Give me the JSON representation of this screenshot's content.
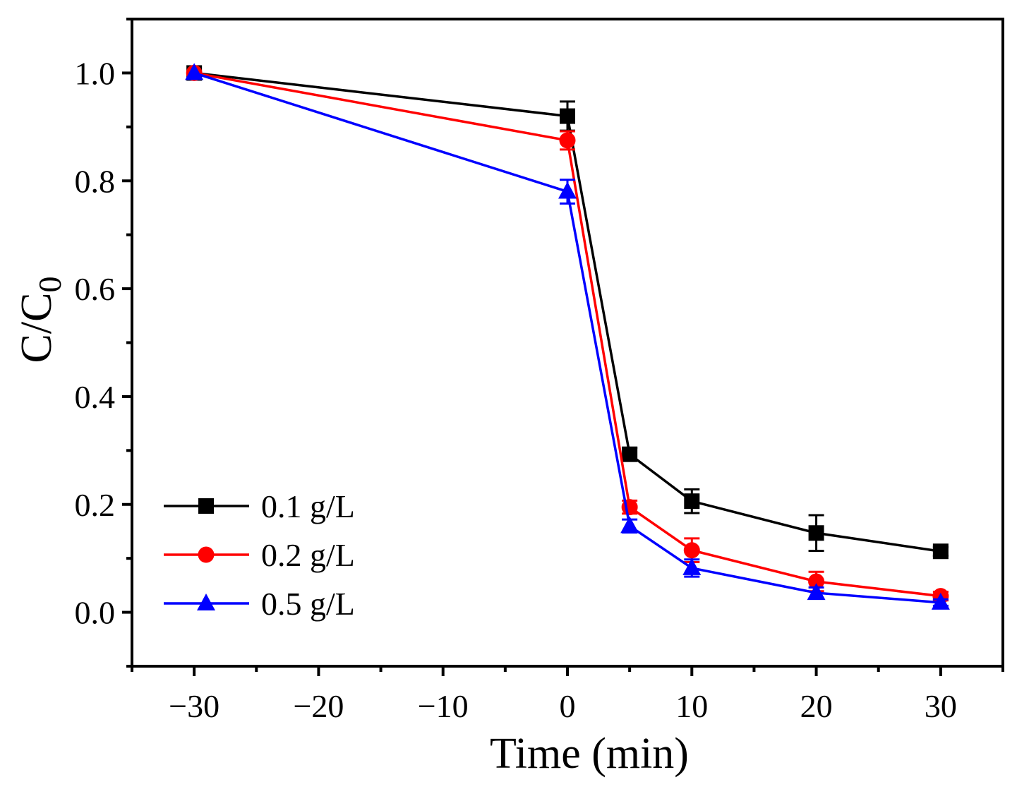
{
  "chart_data": {
    "type": "line",
    "xlabel": "Time (min)",
    "ylabel": "C/C",
    "ylabel_sub": "0",
    "xlim": [
      -35,
      35
    ],
    "ylim": [
      -0.1,
      1.1
    ],
    "xticks": [
      -30,
      -20,
      -10,
      0,
      10,
      20,
      30
    ],
    "xtick_labels": [
      "−30",
      "−20",
      "−10",
      "0",
      "10",
      "20",
      "30"
    ],
    "yticks": [
      0.0,
      0.2,
      0.4,
      0.6,
      0.8,
      1.0
    ],
    "ytick_labels": [
      "0.0",
      "0.2",
      "0.4",
      "0.6",
      "0.8",
      "1.0"
    ],
    "legend_position": "bottom-left",
    "x": [
      -30,
      0,
      5,
      10,
      20,
      30
    ],
    "series": [
      {
        "name": "0.1 g/L",
        "color": "#000000",
        "marker": "square",
        "values": [
          1.0,
          0.92,
          0.293,
          0.206,
          0.147,
          0.113
        ],
        "errors": [
          0.0,
          0.027,
          0.012,
          0.022,
          0.033,
          0.008
        ]
      },
      {
        "name": "0.2 g/L",
        "color": "#ff0000",
        "marker": "circle",
        "values": [
          1.0,
          0.875,
          0.195,
          0.115,
          0.057,
          0.03
        ],
        "errors": [
          0.0,
          0.017,
          0.012,
          0.022,
          0.018,
          0.008
        ]
      },
      {
        "name": "0.5 g/L",
        "color": "#0000ff",
        "marker": "triangle",
        "values": [
          1.0,
          0.78,
          0.16,
          0.082,
          0.036,
          0.018
        ],
        "errors": [
          0.0,
          0.022,
          0.012,
          0.016,
          0.01,
          0.006
        ]
      }
    ]
  }
}
